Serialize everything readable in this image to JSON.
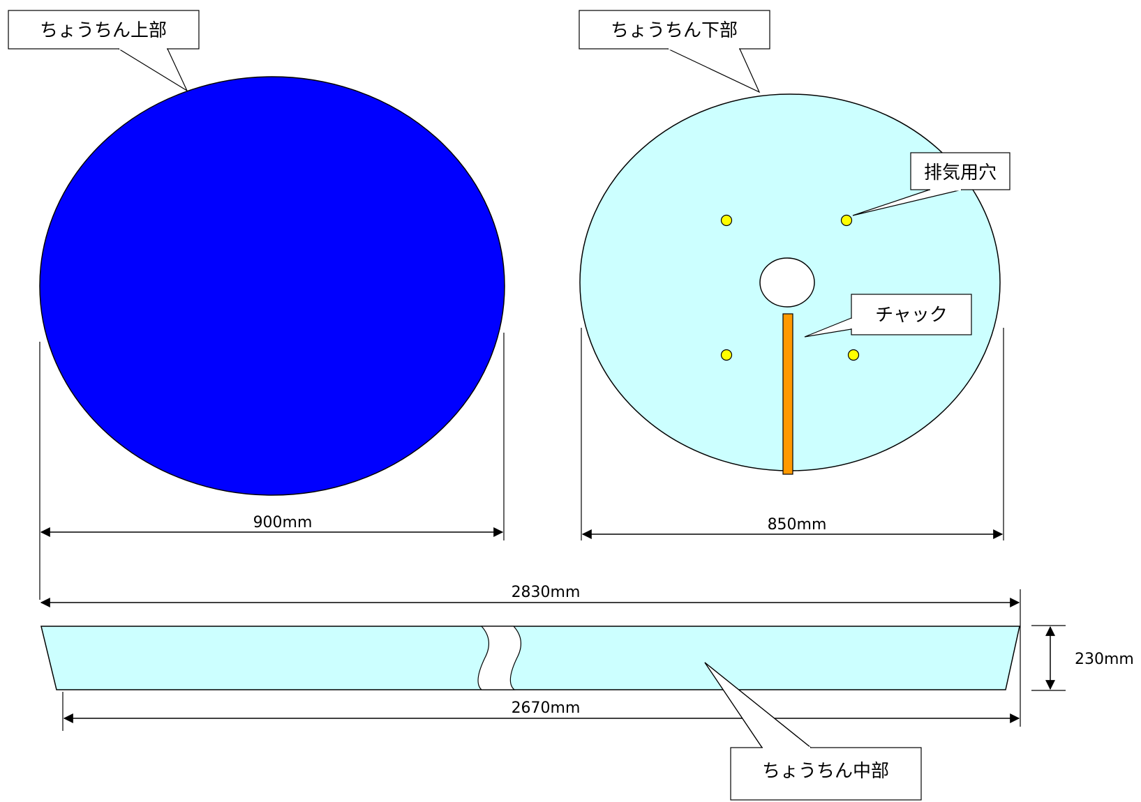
{
  "labels": {
    "top_part": "ちょうちん上部",
    "bottom_part": "ちょうちん下部",
    "middle_part": "ちょうちん中部",
    "vent_holes": "排気用穴",
    "zipper": "チャック"
  },
  "dimensions": {
    "top_diameter": "900mm",
    "bottom_diameter": "850mm",
    "middle_top_length": "2830mm",
    "middle_bottom_length": "2670mm",
    "middle_height": "230mm"
  },
  "colors": {
    "top_fill": "#0000ff",
    "bottom_fill": "#ccffff",
    "middle_fill": "#ccffff",
    "vent_fill": "#ffff00",
    "zipper_fill": "#ff9900",
    "center_hole_fill": "#ffffff"
  }
}
